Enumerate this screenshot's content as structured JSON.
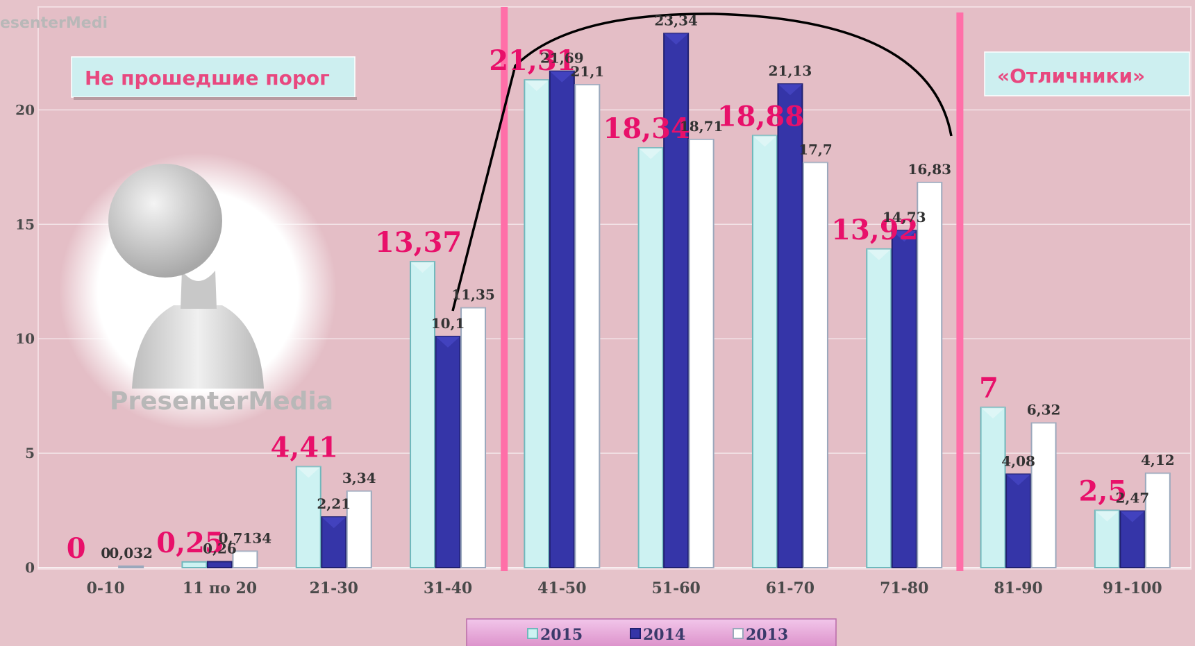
{
  "watermark": "PresenterMedia",
  "watermark_top": "esenterMedi",
  "label_boxes": {
    "left": "Не прошедшие порог",
    "right": "«Отличники»"
  },
  "colors": {
    "background": "#e6c3ca",
    "plot_background": "#e4bec6",
    "s2015": "#cdf2f2",
    "s2014": "#3535a8",
    "s2013": "#ffffff",
    "highlight_label": "#e8106a",
    "threshold_line": "#ff6fa8",
    "legend_bg": "#e8a6d8"
  },
  "chart_data": {
    "type": "bar",
    "categories": [
      "0-10",
      "11 по 20",
      "21-30",
      "31-40",
      "41-50",
      "51-60",
      "61-70",
      "71-80",
      "81-90",
      "91-100"
    ],
    "series": [
      {
        "name": "2015",
        "values": [
          0,
          0.25,
          4.41,
          13.37,
          21.31,
          18.34,
          18.88,
          13.92,
          7,
          2.5
        ],
        "labels": [
          "0",
          "0,25",
          "4,41",
          "13,37",
          "21,31",
          "18,34",
          "18,88",
          "13,92",
          "7",
          "2,5"
        ]
      },
      {
        "name": "2014",
        "values": [
          0,
          0.26,
          2.21,
          10.1,
          21.69,
          23.34,
          21.13,
          14.73,
          4.08,
          2.47
        ],
        "labels": [
          "0",
          "0,26",
          "2,21",
          "10,1",
          "21,69",
          "23,34",
          "21,13",
          "14,73",
          "4,08",
          "2,47"
        ]
      },
      {
        "name": "2013",
        "values": [
          0.032,
          0.7134,
          3.34,
          11.35,
          21.1,
          18.71,
          17.7,
          16.83,
          6.32,
          4.12
        ],
        "labels": [
          "0,032",
          "0,7134",
          "3,34",
          "11,35",
          "21,1",
          "18,71",
          "17,7",
          "16,83",
          "6,32",
          "4,12"
        ]
      }
    ],
    "yticks": [
      0,
      5,
      10,
      15,
      20
    ],
    "ylim": [
      0,
      24.5
    ],
    "grid": true,
    "legend_position": "bottom-center",
    "thresholds_between": [
      [
        "31-40",
        "41-50"
      ],
      [
        "71-80",
        "81-90"
      ]
    ]
  }
}
